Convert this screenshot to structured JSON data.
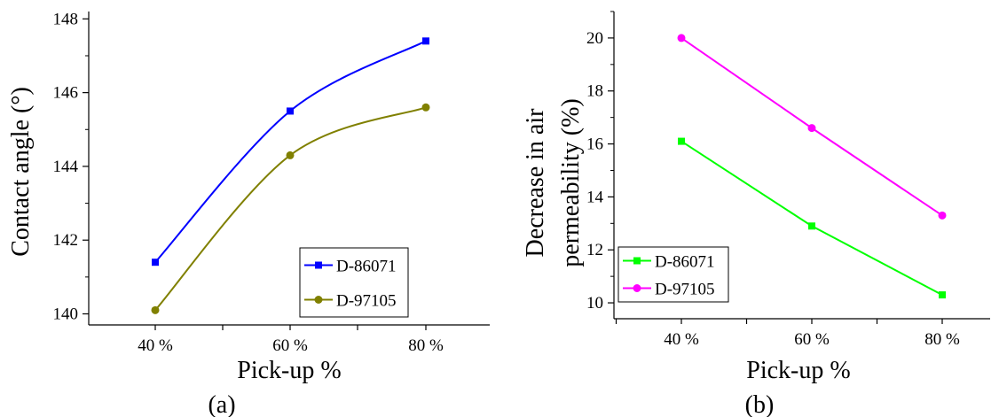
{
  "chart_data": [
    {
      "type": "line",
      "panel_label": "(a)",
      "categories": [
        "40 %",
        "60 %",
        "80 %"
      ],
      "xlabel": "Pick-up %",
      "ylabel": "Contact angle (°)",
      "ylim": [
        139.7,
        148.2
      ],
      "yticks": [
        140,
        142,
        144,
        146,
        148
      ],
      "smooth": true,
      "grid": false,
      "legend_position": "bottom-right",
      "series": [
        {
          "name": "D-86071",
          "values": [
            141.4,
            145.5,
            147.4
          ],
          "color": "#0000ff",
          "marker": "square"
        },
        {
          "name": "D-97105",
          "values": [
            140.1,
            144.3,
            145.6
          ],
          "color": "#808000",
          "marker": "circle"
        }
      ]
    },
    {
      "type": "line",
      "panel_label": "(b)",
      "categories": [
        "40 %",
        "60 %",
        "80 %"
      ],
      "xlabel": "Pick-up %",
      "ylabel": [
        "Decrease in air",
        "permeability (%)"
      ],
      "ylim": [
        9.4,
        21.0
      ],
      "yticks": [
        10,
        12,
        14,
        16,
        18,
        20
      ],
      "smooth": false,
      "grid": false,
      "legend_position": "bottom-left",
      "series": [
        {
          "name": "D-86071",
          "values": [
            16.1,
            12.9,
            10.3
          ],
          "color": "#00ff00",
          "marker": "square"
        },
        {
          "name": "D-97105",
          "values": [
            20.0,
            16.6,
            13.3
          ],
          "color": "#ff00ff",
          "marker": "circle"
        }
      ]
    }
  ]
}
